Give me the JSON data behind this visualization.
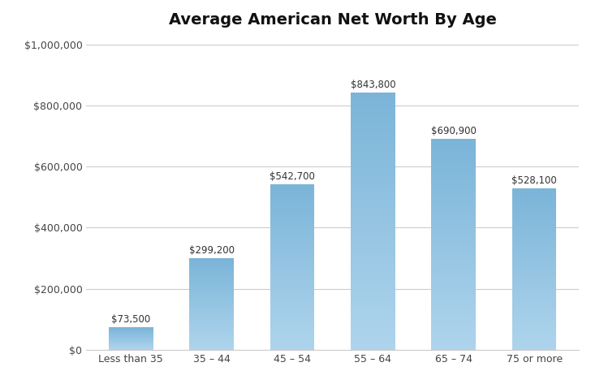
{
  "title": "Average American Net Worth By Age",
  "categories": [
    "Less than 35",
    "35 – 44",
    "45 – 54",
    "55 – 64",
    "65 – 74",
    "75 or more"
  ],
  "values": [
    73500,
    299200,
    542700,
    843800,
    690900,
    528100
  ],
  "labels": [
    "$73,500",
    "$299,200",
    "$542,700",
    "$843,800",
    "$690,900",
    "$528,100"
  ],
  "bar_color_top": "#7ab4d8",
  "bar_color_bottom": "#aed4ec",
  "ylim": [
    0,
    1000000
  ],
  "ytick_step": 200000,
  "background_color": "#ffffff",
  "grid_color": "#cccccc",
  "title_fontsize": 14,
  "label_fontsize": 8.5,
  "tick_fontsize": 9,
  "bar_width": 0.55
}
